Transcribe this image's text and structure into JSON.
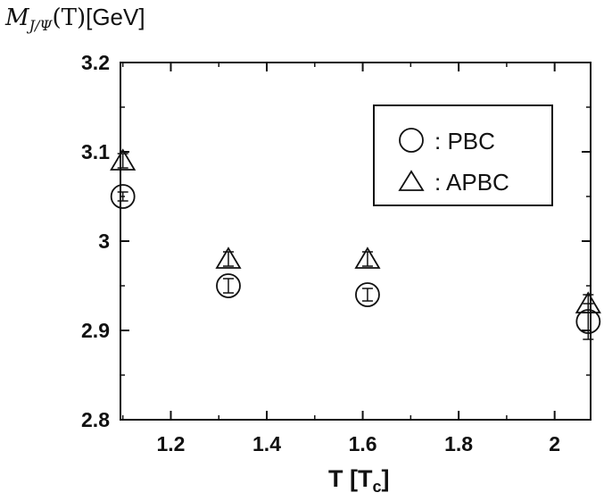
{
  "chart_data": {
    "type": "scatter",
    "ylabel": "M_{J/Ψ}(T)[GeV]",
    "xlabel": "T  [T_c]",
    "xlim": [
      1.095,
      2.075
    ],
    "ylim": [
      2.8,
      3.2
    ],
    "xticks": [
      1.2,
      1.4,
      1.6,
      1.8,
      2
    ],
    "xtick_labels": [
      "1.2",
      "1.4",
      "1.6",
      "1.8",
      "2"
    ],
    "yticks": [
      2.8,
      2.9,
      3.0,
      3.1,
      3.2
    ],
    "ytick_labels": [
      "2.8",
      "2.9",
      "3",
      "3.1",
      "3.2"
    ],
    "legend_position": "top-right",
    "series": [
      {
        "name": "PBC",
        "marker": "circle",
        "points": [
          {
            "x": 1.1,
            "y": 3.05,
            "err": 0.005
          },
          {
            "x": 1.32,
            "y": 2.95,
            "err": 0.008
          },
          {
            "x": 1.61,
            "y": 2.94,
            "err": 0.007
          },
          {
            "x": 2.07,
            "y": 2.91,
            "err": 0.02
          }
        ]
      },
      {
        "name": "APBC",
        "marker": "triangle",
        "points": [
          {
            "x": 1.1,
            "y": 3.09,
            "err": 0.008
          },
          {
            "x": 1.32,
            "y": 2.98,
            "err": 0.008
          },
          {
            "x": 1.61,
            "y": 2.98,
            "err": 0.008
          },
          {
            "x": 2.07,
            "y": 2.93,
            "err": 0.01
          }
        ]
      }
    ]
  },
  "legend": {
    "pbc_label": ": PBC",
    "apbc_label": ": APBC"
  },
  "axis": {
    "x_title_main": "T  [T",
    "x_title_sub": "c",
    "x_title_close": "]"
  },
  "title": {
    "m": "M",
    "sub": "J/Ψ",
    "rest": "(T)",
    "unit": "[GeV]"
  }
}
